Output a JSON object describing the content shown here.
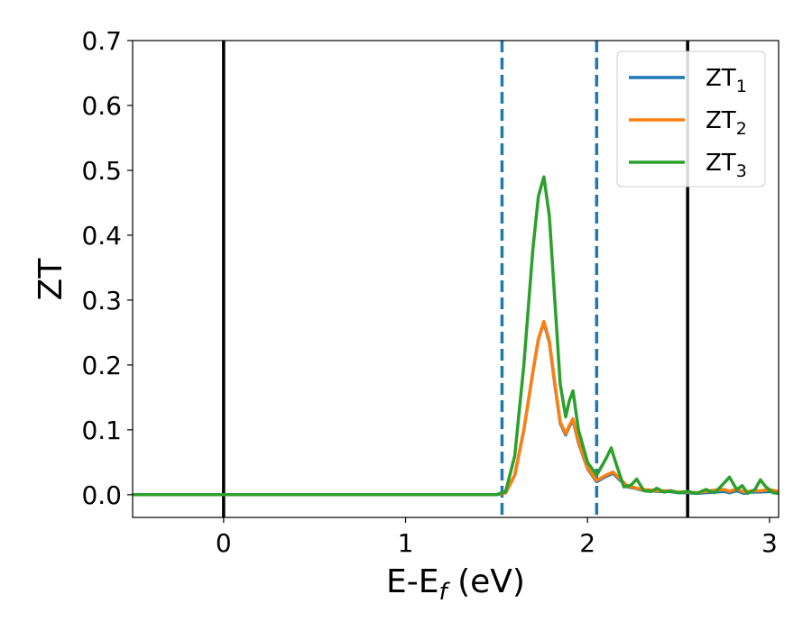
{
  "chart_data": {
    "type": "line",
    "xlabel": "E-E",
    "xlabel_sub": "f",
    "xlabel_unit": " (eV)",
    "ylabel": "ZT",
    "xlim": [
      -0.5,
      3.05
    ],
    "ylim": [
      -0.035,
      0.7
    ],
    "xticks": [
      0,
      1,
      2,
      3
    ],
    "xtick_labels": [
      "0",
      "1",
      "2",
      "3"
    ],
    "yticks": [
      0.0,
      0.1,
      0.2,
      0.3,
      0.4,
      0.5,
      0.6,
      0.7
    ],
    "ytick_labels": [
      "0.0",
      "0.1",
      "0.2",
      "0.3",
      "0.4",
      "0.5",
      "0.6",
      "0.7"
    ],
    "grid": false,
    "legend_position": "top-right",
    "vertical_lines": [
      {
        "x": 0.0,
        "style": "solid",
        "color": "#000000"
      },
      {
        "x": 2.55,
        "style": "solid",
        "color": "#000000"
      },
      {
        "x": 1.53,
        "style": "dashed",
        "color": "#1f77b4"
      },
      {
        "x": 2.05,
        "style": "dashed",
        "color": "#1f77b4"
      }
    ],
    "series": [
      {
        "name": "ZT",
        "name_sub": "1",
        "color": "#1f77b4",
        "x": [
          -0.5,
          1.5,
          1.55,
          1.6,
          1.65,
          1.7,
          1.73,
          1.76,
          1.79,
          1.82,
          1.85,
          1.88,
          1.9,
          1.92,
          1.95,
          2.0,
          2.05,
          2.1,
          2.14,
          2.18,
          2.22,
          2.26,
          2.3,
          2.35,
          2.4,
          2.45,
          2.5,
          2.55,
          2.6,
          2.65,
          2.7,
          2.75,
          2.78,
          2.82,
          2.86,
          2.9,
          2.95,
          3.0,
          3.05
        ],
        "y": [
          0.0,
          0.0,
          0.003,
          0.03,
          0.1,
          0.19,
          0.24,
          0.265,
          0.235,
          0.17,
          0.11,
          0.092,
          0.105,
          0.115,
          0.08,
          0.04,
          0.02,
          0.028,
          0.033,
          0.022,
          0.012,
          0.01,
          0.007,
          0.006,
          0.005,
          0.005,
          0.003,
          0.003,
          0.002,
          0.003,
          0.004,
          0.005,
          0.003,
          0.006,
          0.002,
          0.004,
          0.004,
          0.005,
          0.004
        ]
      },
      {
        "name": "ZT",
        "name_sub": "2",
        "color": "#ff7f0e",
        "x": [
          -0.5,
          1.5,
          1.55,
          1.6,
          1.65,
          1.7,
          1.73,
          1.76,
          1.79,
          1.82,
          1.85,
          1.88,
          1.9,
          1.92,
          1.95,
          2.0,
          2.05,
          2.1,
          2.14,
          2.18,
          2.22,
          2.26,
          2.3,
          2.35,
          2.4,
          2.45,
          2.5,
          2.55,
          2.6,
          2.65,
          2.7,
          2.75,
          2.78,
          2.82,
          2.86,
          2.9,
          2.95,
          3.0,
          3.05
        ],
        "y": [
          0.0,
          0.0,
          0.003,
          0.03,
          0.1,
          0.19,
          0.24,
          0.267,
          0.237,
          0.172,
          0.112,
          0.094,
          0.107,
          0.117,
          0.082,
          0.041,
          0.022,
          0.03,
          0.035,
          0.024,
          0.013,
          0.011,
          0.008,
          0.007,
          0.006,
          0.006,
          0.004,
          0.004,
          0.003,
          0.005,
          0.007,
          0.008,
          0.005,
          0.009,
          0.004,
          0.006,
          0.006,
          0.008,
          0.005
        ]
      },
      {
        "name": "ZT",
        "name_sub": "3",
        "color": "#2ca02c",
        "x": [
          -0.5,
          1.5,
          1.55,
          1.6,
          1.65,
          1.7,
          1.73,
          1.76,
          1.79,
          1.82,
          1.85,
          1.88,
          1.9,
          1.92,
          1.95,
          2.0,
          2.05,
          2.1,
          2.13,
          2.16,
          2.2,
          2.24,
          2.27,
          2.31,
          2.35,
          2.38,
          2.42,
          2.46,
          2.5,
          2.55,
          2.6,
          2.65,
          2.7,
          2.74,
          2.78,
          2.82,
          2.85,
          2.88,
          2.92,
          2.95,
          2.98,
          3.02,
          3.05
        ],
        "y": [
          0.0,
          0.0,
          0.005,
          0.06,
          0.2,
          0.38,
          0.46,
          0.49,
          0.43,
          0.3,
          0.17,
          0.12,
          0.145,
          0.16,
          0.1,
          0.05,
          0.03,
          0.055,
          0.072,
          0.045,
          0.012,
          0.015,
          0.024,
          0.006,
          0.005,
          0.01,
          0.004,
          0.006,
          0.003,
          0.005,
          0.002,
          0.008,
          0.003,
          0.015,
          0.027,
          0.008,
          0.014,
          0.002,
          0.008,
          0.023,
          0.012,
          0.003,
          0.002
        ]
      }
    ]
  }
}
